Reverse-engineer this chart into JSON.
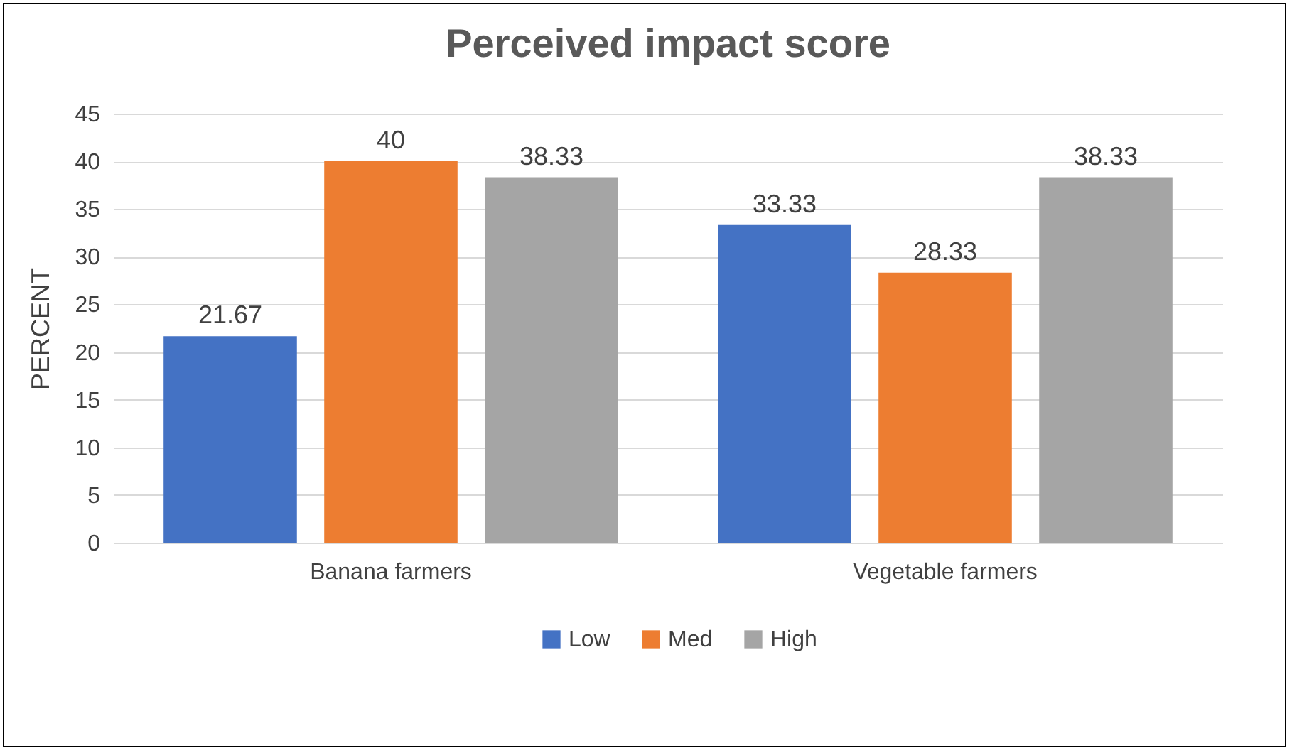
{
  "chart_data": {
    "type": "bar",
    "title": "Perceived impact  score",
    "ylabel": "PERCENT",
    "categories": [
      "Banana farmers",
      "Vegetable farmers"
    ],
    "series": [
      {
        "name": "Low",
        "color": "#4472c4",
        "values": [
          21.67,
          33.33
        ]
      },
      {
        "name": "Med",
        "color": "#ed7d31",
        "values": [
          40,
          28.33
        ]
      },
      {
        "name": "High",
        "color": "#a5a5a5",
        "values": [
          38.33,
          38.33
        ]
      }
    ],
    "ylim": [
      0,
      45
    ],
    "yticks": [
      0,
      5,
      10,
      15,
      20,
      25,
      30,
      35,
      40,
      45
    ],
    "grid": "y",
    "legend": "bottom",
    "data_labels": true
  }
}
